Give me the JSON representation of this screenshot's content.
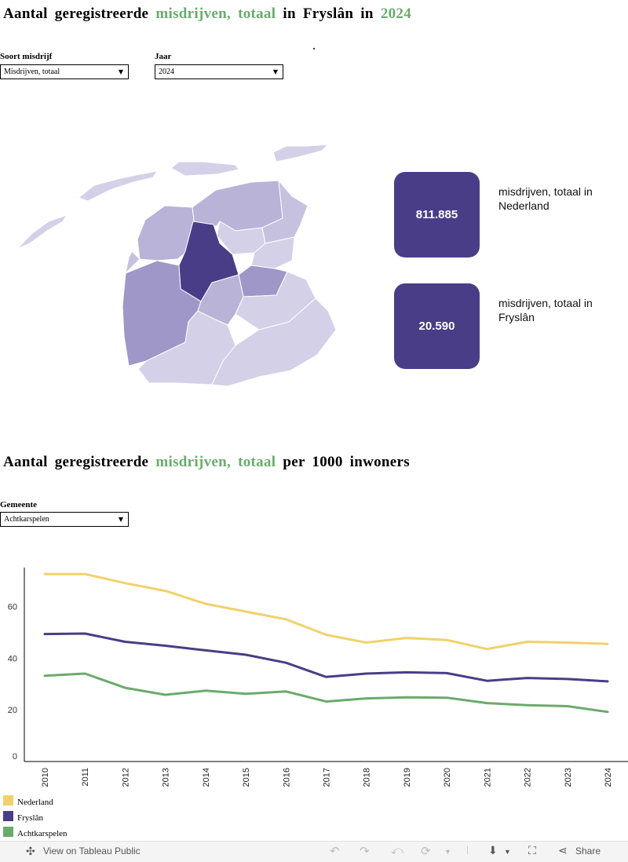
{
  "header": {
    "title_prefix": "Aantal geregistreerde",
    "title_metric": "misdrijven, totaal",
    "title_mid": "in Fryslân in",
    "title_year": "2024"
  },
  "filters": {
    "crime_type": {
      "label": "Soort misdrijf",
      "value": "Misdrijven, totaal"
    },
    "year": {
      "label": "Jaar",
      "value": "2024"
    }
  },
  "kpis": [
    {
      "value": "811.885",
      "label": "misdrijven, totaal in Nederland"
    },
    {
      "value": "20.590",
      "label": "misdrijven, totaal in Fryslân"
    }
  ],
  "chart_header": {
    "title_prefix": "Aantal geregistreerde",
    "title_metric": "misdrijven, totaal",
    "title_suffix": "per 1000 inwoners"
  },
  "municipality_filter": {
    "label": "Gemeente",
    "value": "Achtkarspelen"
  },
  "colors": {
    "nederland": "#f2d16b",
    "fryslan": "#4a3d87",
    "achtkarspelen": "#6aab6c",
    "highlight": "#6aab6c"
  },
  "chart_data": {
    "type": "line",
    "title": "Aantal geregistreerde misdrijven, totaal per 1000 inwoners",
    "xlabel": "",
    "ylabel": "",
    "x": [
      "2010",
      "2011",
      "2012",
      "2013",
      "2014",
      "2015",
      "2016",
      "2017",
      "2018",
      "2019",
      "2020",
      "2021",
      "2022",
      "2023",
      "2024"
    ],
    "ylim": [
      0,
      75
    ],
    "yticks": [
      0,
      20,
      40,
      60
    ],
    "series": [
      {
        "name": "Nederland",
        "color": "#f2d16b",
        "values": [
          72.5,
          72.5,
          69,
          66,
          61,
          58,
          55,
          49,
          46,
          47.8,
          47,
          43.5,
          46.3,
          46,
          45.5
        ]
      },
      {
        "name": "Fryslân",
        "color": "#4a3d87",
        "values": [
          49.3,
          49.5,
          46.3,
          44.8,
          43,
          41.3,
          38.2,
          32.7,
          34,
          34.5,
          34.2,
          31.2,
          32.3,
          31.9,
          31
        ]
      },
      {
        "name": "Achtkarspelen",
        "color": "#6aab6c",
        "values": [
          33.2,
          34,
          28.5,
          25.8,
          27.4,
          26.2,
          27.1,
          23.2,
          24.4,
          24.8,
          24.7,
          22.6,
          21.8,
          21.4,
          19.2
        ]
      }
    ],
    "legend": [
      "Nederland",
      "Fryslân",
      "Achtkarspelen"
    ],
    "legend_position": "bottom-left"
  },
  "toolbar": {
    "view_label": "View on Tableau Public",
    "share_label": "Share"
  }
}
